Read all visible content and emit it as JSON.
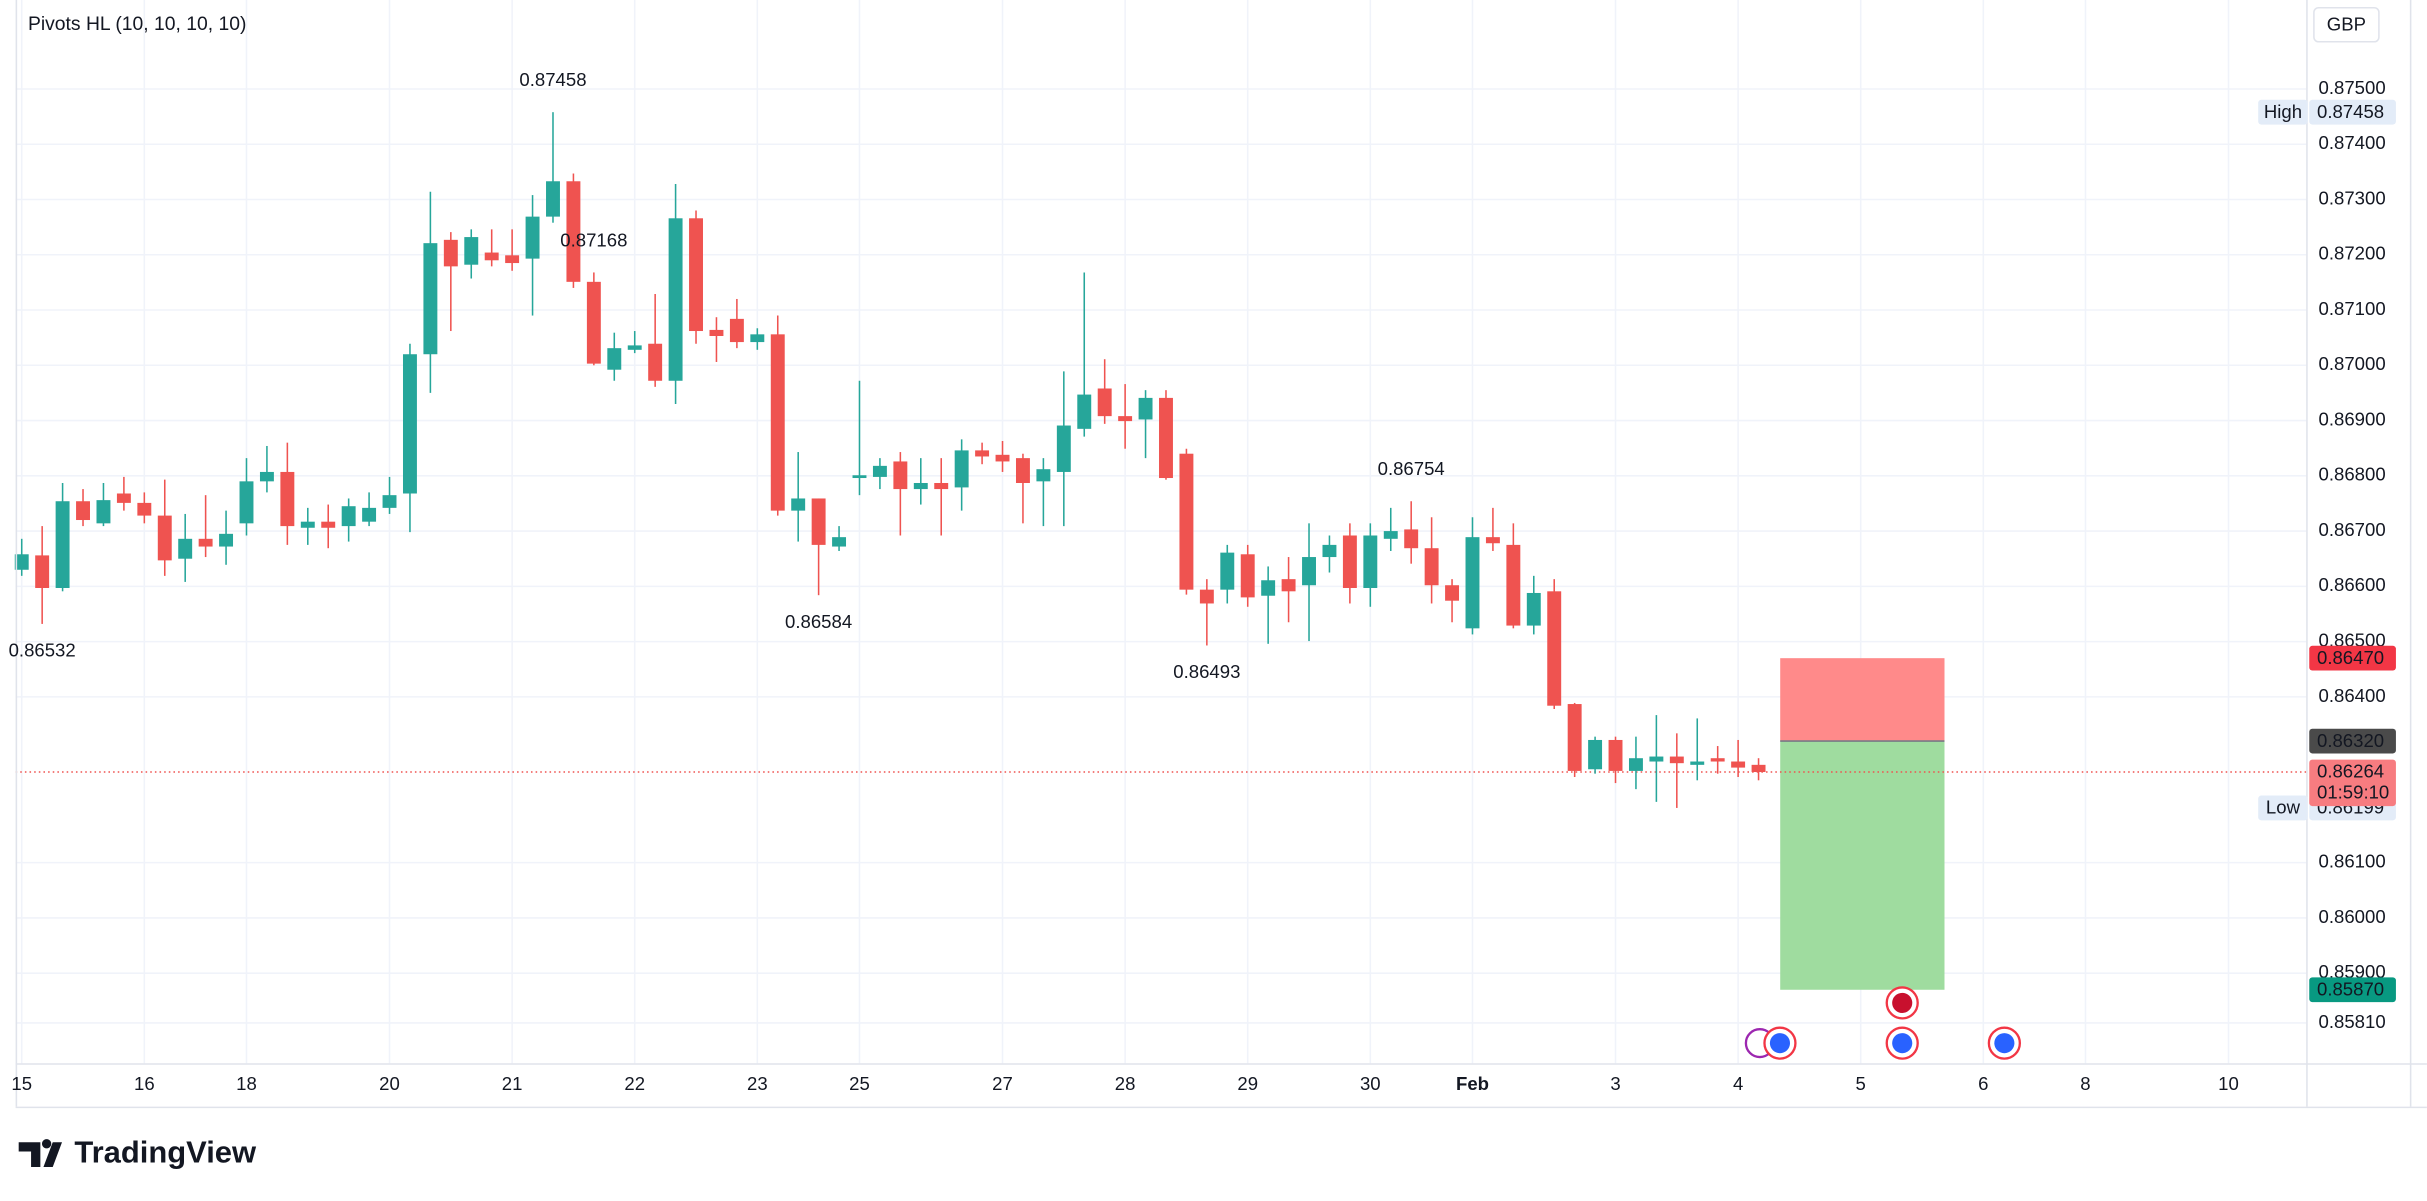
{
  "chart_data": {
    "type": "candlestick",
    "title": "Pivots HL (10, 10, 10, 10)",
    "currency": "GBP",
    "brand": "TradingView",
    "up_color": "#26a69a",
    "down_color": "#ef5350",
    "open": [
      0.8663,
      0.86656,
      0.86597,
      0.86754,
      0.86714,
      0.86768,
      0.86751,
      0.86728,
      0.8665,
      0.86686,
      0.86672,
      0.86714,
      0.8679,
      0.86807,
      0.86706,
      0.86717,
      0.86709,
      0.86717,
      0.86742,
      0.86768,
      0.8702,
      0.87227,
      0.87182,
      0.87204,
      0.87199,
      0.87193,
      0.87269,
      0.87333,
      0.87151,
      0.86992,
      0.87028,
      0.87039,
      0.86972,
      0.87266,
      0.87064,
      0.87084,
      0.87042,
      0.87056,
      0.86737,
      0.86759,
      0.86672,
      0.86796,
      0.86798,
      0.86826,
      0.86776,
      0.86787,
      0.86779,
      0.86846,
      0.86838,
      0.86832,
      0.8679,
      0.86807,
      0.86885,
      0.86958,
      0.86908,
      0.86902,
      0.86941,
      0.8684,
      0.86594,
      0.86594,
      0.86658,
      0.86583,
      0.86613,
      0.86602,
      0.86653,
      0.86692,
      0.86597,
      0.86686,
      0.86703,
      0.86669,
      0.86602,
      0.86524,
      0.86689,
      0.86675,
      0.86529,
      0.86591,
      0.86387,
      0.86269,
      0.86322,
      0.86266,
      0.86283,
      0.86292,
      0.86277,
      0.86289,
      0.86283,
      0.86277
    ],
    "high": [
      0.86686,
      0.86709,
      0.86787,
      0.86776,
      0.86787,
      0.86798,
      0.8677,
      0.86793,
      0.86731,
      0.86765,
      0.86737,
      0.86832,
      0.86854,
      0.8686,
      0.86742,
      0.86748,
      0.86759,
      0.8677,
      0.86798,
      0.87039,
      0.87314,
      0.87241,
      0.87246,
      0.87246,
      0.87246,
      0.87308,
      0.87458,
      0.87347,
      0.87168,
      0.87059,
      0.87062,
      0.87129,
      0.87328,
      0.8728,
      0.87087,
      0.8712,
      0.87067,
      0.8709,
      0.86843,
      0.86759,
      0.86709,
      0.86972,
      0.86832,
      0.86843,
      0.86832,
      0.86832,
      0.86866,
      0.8686,
      0.86863,
      0.8684,
      0.86832,
      0.86989,
      0.87168,
      0.87011,
      0.86966,
      0.86955,
      0.86955,
      0.86849,
      0.86613,
      0.86675,
      0.86675,
      0.86636,
      0.86653,
      0.86714,
      0.86692,
      0.86714,
      0.86714,
      0.86742,
      0.86754,
      0.86725,
      0.86613,
      0.86725,
      0.86742,
      0.86714,
      0.86619,
      0.86613,
      0.86389,
      0.86328,
      0.86328,
      0.86328,
      0.86367,
      0.86334,
      0.86361,
      0.86311,
      0.86322,
      0.86289
    ],
    "low": [
      0.86619,
      0.86532,
      0.86591,
      0.86709,
      0.86709,
      0.86737,
      0.86714,
      0.86619,
      0.86608,
      0.86653,
      0.86639,
      0.86692,
      0.8677,
      0.86675,
      0.86675,
      0.86669,
      0.86681,
      0.86709,
      0.86731,
      0.86698,
      0.8695,
      0.87062,
      0.87157,
      0.87179,
      0.87171,
      0.8709,
      0.87258,
      0.8714,
      0.87,
      0.86972,
      0.87022,
      0.86961,
      0.8693,
      0.87039,
      0.87006,
      0.87031,
      0.87028,
      0.86728,
      0.86681,
      0.86584,
      0.86664,
      0.86765,
      0.86776,
      0.86692,
      0.86748,
      0.86692,
      0.86737,
      0.86821,
      0.86807,
      0.86714,
      0.86709,
      0.86709,
      0.86871,
      0.86894,
      0.86849,
      0.86832,
      0.86793,
      0.86585,
      0.86493,
      0.86569,
      0.86563,
      0.86496,
      0.86535,
      0.86501,
      0.86625,
      0.86569,
      0.86563,
      0.86664,
      0.86641,
      0.86569,
      0.86535,
      0.86513,
      0.86664,
      0.86524,
      0.86513,
      0.86378,
      0.86255,
      0.86261,
      0.86244,
      0.86233,
      0.8621,
      0.86199,
      0.86249,
      0.86261,
      0.86255,
      0.86249
    ],
    "close": [
      0.86658,
      0.86597,
      0.86754,
      0.8672,
      0.86756,
      0.86751,
      0.86728,
      0.86647,
      0.86686,
      0.86672,
      0.86695,
      0.8679,
      0.86807,
      0.86709,
      0.86717,
      0.86706,
      0.86745,
      0.86742,
      0.86765,
      0.8702,
      0.87221,
      0.87179,
      0.87232,
      0.8719,
      0.87185,
      0.87269,
      0.87333,
      0.87151,
      0.87003,
      0.87031,
      0.87036,
      0.86972,
      0.87266,
      0.87062,
      0.87053,
      0.87042,
      0.87056,
      0.86737,
      0.86759,
      0.86675,
      0.86689,
      0.86801,
      0.86818,
      0.86776,
      0.86787,
      0.86776,
      0.86846,
      0.86835,
      0.86826,
      0.86787,
      0.86812,
      0.86891,
      0.86947,
      0.86908,
      0.86899,
      0.86941,
      0.86796,
      0.86594,
      0.86569,
      0.86661,
      0.8658,
      0.86611,
      0.86591,
      0.86653,
      0.86675,
      0.86597,
      0.86692,
      0.867,
      0.86669,
      0.86602,
      0.86574,
      0.86689,
      0.86678,
      0.86529,
      0.86588,
      0.86384,
      0.86266,
      0.86322,
      0.86266,
      0.86289,
      0.86292,
      0.8628,
      0.86283,
      0.86283,
      0.86272,
      0.86264
    ],
    "xlim": [
      -0.3,
      111.8
    ],
    "xticks": [
      {
        "value": 0,
        "label": "15"
      },
      {
        "value": 6,
        "label": "16"
      },
      {
        "value": 11,
        "label": "18"
      },
      {
        "value": 18,
        "label": "20"
      },
      {
        "value": 24,
        "label": "21"
      },
      {
        "value": 30,
        "label": "22"
      },
      {
        "value": 36,
        "label": "23"
      },
      {
        "value": 41,
        "label": "25"
      },
      {
        "value": 48,
        "label": "27"
      },
      {
        "value": 54,
        "label": "28"
      },
      {
        "value": 60,
        "label": "29"
      },
      {
        "value": 66,
        "label": "30"
      },
      {
        "value": 71,
        "label": "Feb"
      },
      {
        "value": 78,
        "label": "3"
      },
      {
        "value": 84,
        "label": "4"
      },
      {
        "value": 90,
        "label": "5"
      },
      {
        "value": 96,
        "label": "6"
      },
      {
        "value": 101,
        "label": "8"
      },
      {
        "value": 108,
        "label": "10"
      }
    ],
    "ylim": [
      0.85737,
      0.87661
    ],
    "yticks": [
      {
        "value": 0.875,
        "label": "0.87500"
      },
      {
        "value": 0.874,
        "label": "0.87400"
      },
      {
        "value": 0.873,
        "label": "0.87300"
      },
      {
        "value": 0.872,
        "label": "0.87200"
      },
      {
        "value": 0.871,
        "label": "0.87100"
      },
      {
        "value": 0.87,
        "label": "0.87000"
      },
      {
        "value": 0.869,
        "label": "0.86900"
      },
      {
        "value": 0.868,
        "label": "0.86800"
      },
      {
        "value": 0.867,
        "label": "0.86700"
      },
      {
        "value": 0.866,
        "label": "0.86600"
      },
      {
        "value": 0.865,
        "label": "0.86500"
      },
      {
        "value": 0.864,
        "label": "0.86400"
      },
      {
        "value": 0.861,
        "label": "0.86100"
      },
      {
        "value": 0.86,
        "label": "0.86000"
      },
      {
        "value": 0.859,
        "label": "0.85900"
      },
      {
        "value": 0.8581,
        "label": "0.85810"
      }
    ],
    "pivots": [
      0.86532,
      0.87458,
      0.86584,
      0.87168,
      0.86493,
      0.86754
    ],
    "extremes": [
      {
        "name": "High",
        "value": 0.87458
      },
      {
        "name": "Low",
        "value": 0.86199
      }
    ],
    "last": {
      "value": 0.86264,
      "countdown": "01:59:10",
      "color": "#f77c80"
    },
    "position": {
      "stop": {
        "value": 0.8647,
        "label": "0.86470",
        "color": "#f23645",
        "zone": "#ff8a8a"
      },
      "entry": {
        "value": 0.8632,
        "label": "0.86320",
        "color": "#4a4a4a"
      },
      "target": {
        "value": 0.8587,
        "label": "0.85870",
        "color": "#089981",
        "zone": "#9fdc9f"
      }
    }
  }
}
